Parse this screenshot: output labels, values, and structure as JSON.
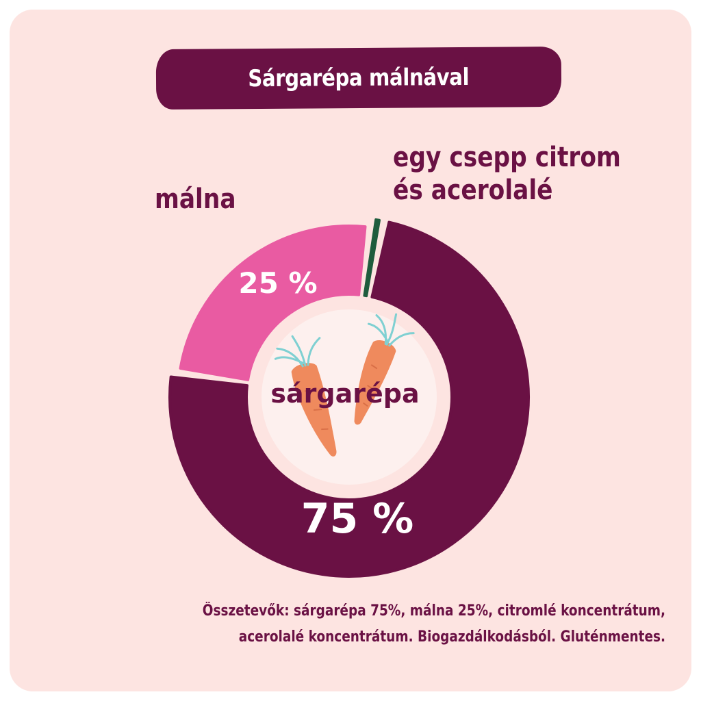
{
  "chart_data": {
    "type": "pie",
    "title": "Sárgarépa málnával",
    "center_label": "sárgarépa",
    "slices": [
      {
        "name": "sárgarépa",
        "value": 75,
        "value_label": "75 %",
        "color": "#6a1144"
      },
      {
        "name": "málna",
        "value": 25,
        "value_label": "25 %",
        "color": "#e95ba2"
      },
      {
        "name_lines": [
          "egy csepp citrom",
          "és acerolalé"
        ],
        "value": 1.2,
        "color": "#1f5c3d"
      }
    ]
  },
  "labels": {
    "malna": "málna",
    "citrom_line1": "egy csepp citrom",
    "citrom_line2": "és acerolalé"
  },
  "ingredients": {
    "line1": "Összetevők: sárgarépa 75%, málna 25%, citromlé koncentrátum,",
    "line2": "acerolalé koncentrátum. Biogazdálkodásból. Gluténmentes."
  },
  "colors": {
    "background": "#fde4e1",
    "primary": "#6a1144",
    "accent_pink": "#e95ba2",
    "accent_green": "#1f5c3d",
    "carrot": "#ef8a5d",
    "carrot_leaves": "#7fd0d2"
  },
  "icons": {
    "center_illustration": "carrot-icon"
  }
}
